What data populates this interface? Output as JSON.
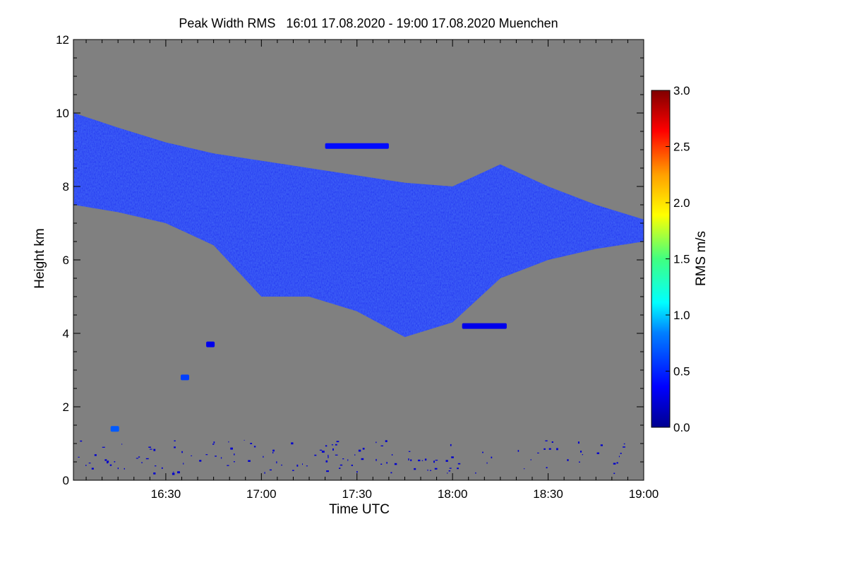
{
  "chart_data": {
    "type": "heatmap",
    "title": "Peak Width RMS   16:01 17.08.2020 - 19:00 17.08.2020 Muenchen",
    "xlabel": "Time UTC",
    "ylabel": "Height km",
    "colorbar_label": "RMS m/s",
    "x_range": [
      "16:01",
      "19:00"
    ],
    "ylim": [
      0,
      12
    ],
    "x_ticks": [
      "16:30",
      "17:00",
      "17:30",
      "18:00",
      "18:30",
      "19:00"
    ],
    "y_ticks": [
      "0",
      "2",
      "4",
      "6",
      "8",
      "10",
      "12"
    ],
    "colorbar_range": [
      0.0,
      3.0
    ],
    "colorbar_ticks": [
      "0.0",
      "0.5",
      "1.0",
      "1.5",
      "2.0",
      "2.5",
      "3.0"
    ],
    "colormap": "rainbow (dark blue to dark red)",
    "background_color": "#808080",
    "cloud_color": "#1a2cf0",
    "main_cloud_layer": {
      "description": "high cloud layer descending from ~9-10 km at 16:01 to ~7 km at 19:00, thickening to base ~3.8 km near 17:50",
      "top_km": [
        [
          16.02,
          10.0
        ],
        [
          16.25,
          9.6
        ],
        [
          16.5,
          9.2
        ],
        [
          16.75,
          8.9
        ],
        [
          17.0,
          8.7
        ],
        [
          17.25,
          8.5
        ],
        [
          17.5,
          8.3
        ],
        [
          17.75,
          8.1
        ],
        [
          18.0,
          8.0
        ],
        [
          18.25,
          8.6
        ],
        [
          18.5,
          8.0
        ],
        [
          18.75,
          7.5
        ],
        [
          19.0,
          7.1
        ]
      ],
      "base_km": [
        [
          16.02,
          7.5
        ],
        [
          16.25,
          7.3
        ],
        [
          16.5,
          7.0
        ],
        [
          16.75,
          6.4
        ],
        [
          17.0,
          5.0
        ],
        [
          17.25,
          5.0
        ],
        [
          17.5,
          4.6
        ],
        [
          17.75,
          3.9
        ],
        [
          18.0,
          4.3
        ],
        [
          18.25,
          5.5
        ],
        [
          18.5,
          6.0
        ],
        [
          18.75,
          6.3
        ],
        [
          19.0,
          6.5
        ]
      ],
      "rms_typical": 0.2,
      "rms_max": 0.7
    },
    "other_echoes": [
      {
        "time": "16:44",
        "height_km": 3.7,
        "rms": 0.3
      },
      {
        "time": "16:36",
        "height_km": 2.8,
        "rms": 0.6
      },
      {
        "time": "16:14",
        "height_km": 1.4,
        "rms": 0.7
      },
      {
        "time": "18:03-18:17",
        "height_km": 4.2,
        "rms": 0.3
      },
      {
        "time": "17:20-17:40",
        "height_km": 9.1,
        "rms": 0.4
      },
      {
        "time": "16:02-19:00",
        "height_km": 0.6,
        "rms": 0.2,
        "note": "scattered low-level speckles"
      }
    ]
  }
}
